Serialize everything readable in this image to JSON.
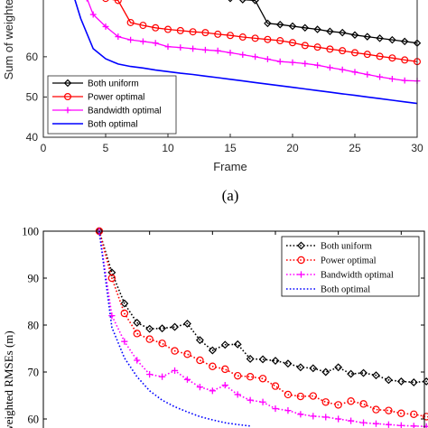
{
  "chart_data": [
    {
      "type": "line",
      "title": "",
      "xlabel": "Frame",
      "ylabel": "Sum of weighted",
      "xlim": [
        0,
        30
      ],
      "ylim": [
        40,
        75
      ],
      "xticks": [
        "0",
        "5",
        "10",
        "15",
        "20",
        "25",
        "30"
      ],
      "yticks": [
        "40",
        "50",
        "60"
      ],
      "legend_position": "lower-left",
      "grid": false,
      "caption": "(a)",
      "series": [
        {
          "name": "Both uniform",
          "color": "#000000",
          "marker": "diamond",
          "x": [
            15,
            16,
            17,
            18,
            19,
            20,
            21,
            22,
            23,
            24,
            25,
            26,
            27,
            28,
            29,
            30
          ],
          "y": [
            74.5,
            74.2,
            74.0,
            68.3,
            68.0,
            67.6,
            67.2,
            66.8,
            66.3,
            66.0,
            65.4,
            65.0,
            64.6,
            64.2,
            63.8,
            63.4
          ]
        },
        {
          "name": "Power optimal",
          "color": "#ff0000",
          "marker": "circle",
          "x": [
            5,
            6,
            7,
            8,
            9,
            10,
            11,
            12,
            13,
            14,
            15,
            16,
            17,
            18,
            19,
            20,
            21,
            22,
            23,
            24,
            25,
            26,
            27,
            28,
            29,
            30
          ],
          "y": [
            74.5,
            74.0,
            68.5,
            67.8,
            67.2,
            66.8,
            66.5,
            66.2,
            66.0,
            65.6,
            65.3,
            64.9,
            64.6,
            64.3,
            64.0,
            63.5,
            62.8,
            62.4,
            61.9,
            61.5,
            61.0,
            60.6,
            60.1,
            59.7,
            59.2,
            58.8
          ]
        },
        {
          "name": "Bandwidth optimal",
          "color": "#ff00ff",
          "marker": "plus",
          "x": [
            3.5,
            4,
            5,
            6,
            7,
            8,
            9,
            10,
            11,
            12,
            13,
            14,
            15,
            16,
            17,
            18,
            19,
            20,
            21,
            22,
            23,
            24,
            25,
            26,
            27,
            28,
            29,
            30
          ],
          "y": [
            74.5,
            70.5,
            67.5,
            65.0,
            64.2,
            63.8,
            63.4,
            62.5,
            62.3,
            62.0,
            61.7,
            61.5,
            61.0,
            60.5,
            60.0,
            59.4,
            58.8,
            58.6,
            58.3,
            57.9,
            57.3,
            56.8,
            56.2,
            55.6,
            55.0,
            54.5,
            54.1,
            54.0
          ]
        },
        {
          "name": "Both optimal",
          "color": "#0000ff",
          "marker": "none",
          "x": [
            2.5,
            3,
            4,
            5,
            6,
            7,
            8,
            9,
            10,
            11,
            12,
            13,
            14,
            15,
            16,
            17,
            18,
            19,
            20,
            21,
            22,
            23,
            24,
            25,
            26,
            27,
            28,
            29,
            30
          ],
          "y": [
            74.5,
            69.5,
            62.0,
            59.5,
            58.2,
            57.6,
            57.2,
            56.7,
            56.3,
            55.9,
            55.6,
            55.2,
            54.8,
            54.4,
            54.0,
            53.6,
            53.2,
            52.8,
            52.4,
            52.0,
            51.6,
            51.2,
            50.8,
            50.4,
            50.0,
            49.6,
            49.2,
            48.8,
            48.4
          ]
        }
      ]
    },
    {
      "type": "line",
      "title": "",
      "xlabel": "",
      "ylabel": "of weighted RMSEs (m)",
      "xlim": [
        0,
        30
      ],
      "ylim": [
        58,
        100
      ],
      "yticks": [
        "100",
        "90",
        "80",
        "70",
        "60"
      ],
      "legend_position": "top-right",
      "grid": false,
      "series": [
        {
          "name": "Both uniform",
          "color": "#000000",
          "marker": "diamond",
          "x": [
            1,
            2,
            3,
            4,
            5,
            6,
            7,
            8,
            9,
            10,
            11,
            12,
            13,
            14,
            15,
            16,
            17,
            18,
            19,
            20,
            21,
            22,
            23,
            24,
            25,
            26,
            27,
            28,
            29,
            30
          ],
          "y": [
            100,
            91.2,
            84.6,
            80.5,
            79.2,
            79.3,
            79.6,
            80.3,
            76.8,
            74.6,
            75.8,
            75.9,
            72.8,
            72.7,
            72.4,
            71.8,
            71.0,
            70.8,
            70.0,
            71.0,
            69.6,
            69.8,
            69.3,
            68.3,
            68.0,
            67.8,
            68.0,
            66.9,
            66.4,
            66.8
          ]
        },
        {
          "name": "Power optimal",
          "color": "#ff0000",
          "marker": "circle",
          "x": [
            1,
            2,
            3,
            4,
            5,
            6,
            7,
            8,
            9,
            10,
            11,
            12,
            13,
            14,
            15,
            16,
            17,
            18,
            19,
            20,
            21,
            22,
            23,
            24,
            25,
            26,
            27,
            28,
            29,
            30
          ],
          "y": [
            100,
            90.0,
            82.5,
            78.2,
            77.0,
            76.1,
            74.5,
            73.8,
            72.5,
            71.2,
            70.6,
            69.2,
            69.0,
            68.6,
            67.0,
            65.2,
            64.8,
            64.9,
            63.6,
            63.0,
            63.8,
            63.2,
            62.0,
            61.8,
            61.2,
            61.0,
            60.5,
            60.2,
            59.8,
            59.2
          ]
        },
        {
          "name": "Bandwidth optimal",
          "color": "#ff00ff",
          "marker": "plus",
          "x": [
            1,
            2,
            3,
            4,
            5,
            6,
            7,
            8,
            9,
            10,
            11,
            12,
            13,
            14,
            15,
            16,
            17,
            18,
            19,
            20,
            21,
            22,
            23,
            24,
            25,
            26,
            27,
            28,
            29,
            30
          ],
          "y": [
            100,
            82.0,
            76.5,
            72.5,
            69.5,
            69.0,
            70.3,
            68.4,
            66.8,
            66.0,
            67.2,
            65.2,
            64.0,
            63.6,
            62.2,
            61.8,
            61.0,
            60.6,
            60.4,
            60.0,
            59.6,
            59.2,
            59.0,
            58.8,
            58.6,
            58.5,
            58.4,
            58.3,
            58.2,
            58.1
          ]
        },
        {
          "name": "Both optimal",
          "color": "#0000ff",
          "marker": "none",
          "x": [
            1,
            2,
            3,
            4,
            5,
            6,
            7,
            8,
            9,
            10,
            11,
            12,
            13
          ],
          "y": [
            100,
            79.5,
            73.0,
            69.0,
            66.0,
            64.0,
            62.6,
            61.5,
            60.5,
            59.8,
            59.2,
            58.8,
            58.5
          ]
        }
      ]
    }
  ]
}
